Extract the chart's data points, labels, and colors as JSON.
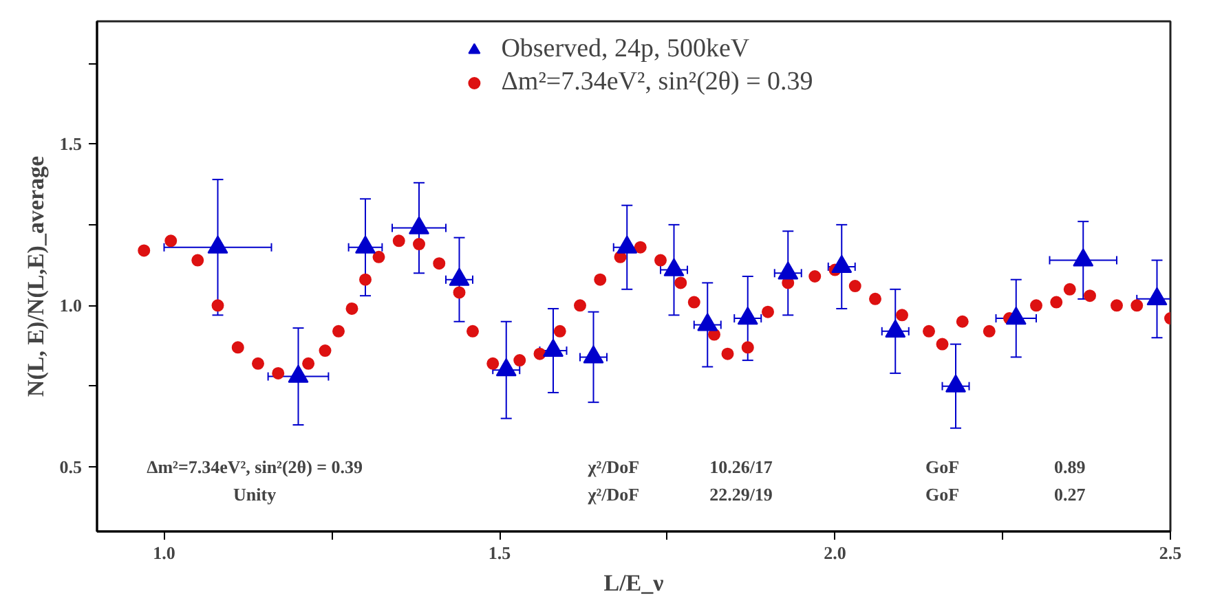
{
  "chart_data": {
    "type": "scatter",
    "xlabel": "L/E_ν",
    "ylabel": "N(L, E)/N(L,E)_average",
    "xlim": [
      0.9,
      2.5
    ],
    "ylim": [
      0.3,
      1.88
    ],
    "xticks": [
      {
        "value": 1,
        "label": "1.0"
      },
      {
        "value": 1.25,
        "label": null
      },
      1.5,
      {
        "value": 1.75,
        "label": null
      },
      {
        "value": 2,
        "label": "2.0"
      },
      {
        "value": 2.25,
        "label": null
      },
      2.5
    ],
    "yticks": [
      0.5,
      {
        "value": 0.75,
        "label": null
      },
      {
        "value": 1,
        "label": "1.0"
      },
      {
        "value": 1.25,
        "label": null
      },
      1.5,
      {
        "value": 1.75,
        "label": null
      }
    ],
    "grid": false,
    "legend": "top",
    "annotations": [
      "Δm²=7.34eV², sin²(2θ) = 0.39",
      "χ²/DoF",
      "10.26/17",
      "GoF",
      "0.89",
      "Unity",
      "χ²/DoF",
      "22.29/19",
      "GoF",
      "0.27"
    ],
    "series": [
      {
        "name": "Observed, 24p, 500keV",
        "color": "#0000cc",
        "marker": "triangle",
        "x": [
          1.08,
          1.2,
          1.3,
          1.38,
          1.44,
          1.51,
          1.58,
          1.64,
          1.69,
          1.76,
          1.81,
          1.87,
          1.93,
          2.01,
          2.09,
          2.18,
          2.27,
          2.37,
          2.48
        ],
        "values": [
          1.18,
          0.78,
          1.18,
          1.24,
          1.08,
          0.8,
          0.86,
          0.84,
          1.18,
          1.11,
          0.94,
          0.96,
          1.1,
          1.12,
          0.92,
          0.75,
          0.96,
          1.14,
          1.02
        ],
        "errors": [
          0.21,
          0.15,
          0.15,
          0.14,
          0.13,
          0.15,
          0.13,
          0.14,
          0.13,
          0.14,
          0.13,
          0.13,
          0.13,
          0.13,
          0.13,
          0.13,
          0.12,
          0.12,
          0.12
        ],
        "xerrors": [
          0.08,
          0.045,
          0.025,
          0.04,
          0.02,
          0.02,
          0.02,
          0.02,
          0.02,
          0.02,
          0.02,
          0.02,
          0.02,
          0.02,
          0.02,
          0.02,
          0.03,
          0.05,
          0.03
        ]
      },
      {
        "name": "Δm²=7.34eV², sin²(2θ) = 0.39",
        "color": "#dd1111",
        "marker": "circle",
        "x": [
          0.97,
          1.01,
          1.05,
          1.08,
          1.11,
          1.14,
          1.17,
          1.215,
          1.24,
          1.26,
          1.28,
          1.3,
          1.32,
          1.35,
          1.38,
          1.41,
          1.44,
          1.46,
          1.49,
          1.53,
          1.56,
          1.59,
          1.62,
          1.65,
          1.68,
          1.71,
          1.74,
          1.77,
          1.79,
          1.82,
          1.84,
          1.87,
          1.9,
          1.93,
          1.97,
          2.0,
          2.03,
          2.06,
          2.1,
          2.14,
          2.16,
          2.19,
          2.23,
          2.26,
          2.3,
          2.33,
          2.35,
          2.38,
          2.42,
          2.45,
          2.5
        ],
        "values": [
          1.17,
          1.2,
          1.14,
          1.0,
          0.87,
          0.82,
          0.79,
          0.82,
          0.86,
          0.92,
          0.99,
          1.08,
          1.15,
          1.2,
          1.19,
          1.13,
          1.04,
          0.92,
          0.82,
          0.83,
          0.85,
          0.92,
          1.0,
          1.08,
          1.15,
          1.18,
          1.14,
          1.07,
          1.01,
          0.91,
          0.85,
          0.87,
          0.98,
          1.07,
          1.09,
          1.11,
          1.06,
          1.02,
          0.97,
          0.92,
          0.88,
          0.95,
          0.92,
          0.96,
          1.0,
          1.01,
          1.05,
          1.03,
          1.0,
          1.0,
          0.96
        ]
      }
    ]
  }
}
